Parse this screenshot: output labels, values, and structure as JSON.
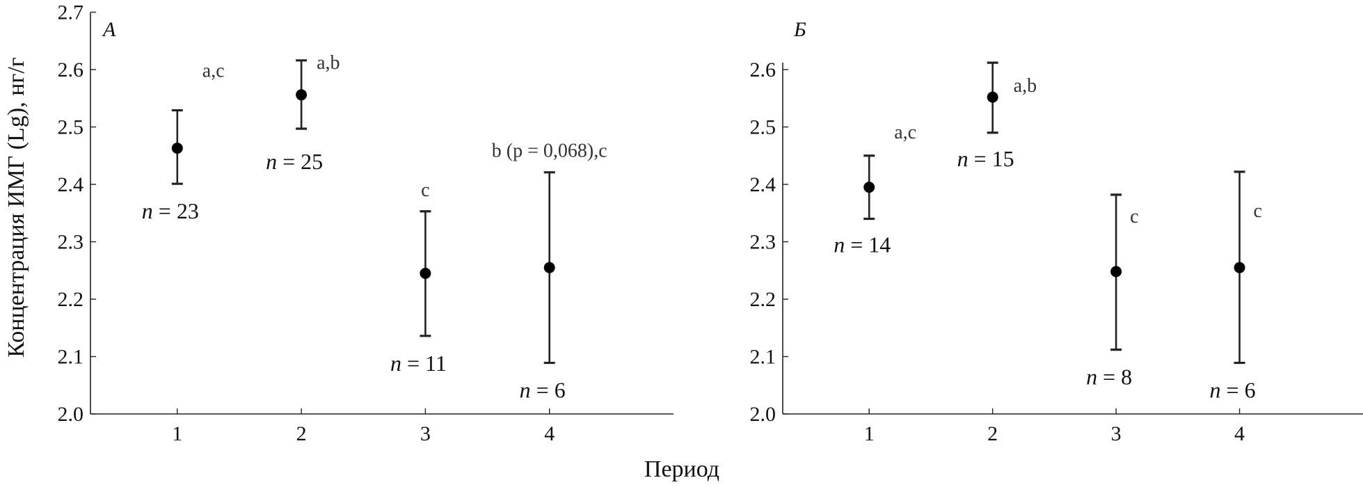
{
  "ylabel": "Концентрация ИМГ (Lg), нг/г",
  "xlabel": "Период",
  "chart_data": [
    {
      "type": "scatter",
      "panel": "А",
      "xticks": [
        "1",
        "2",
        "3",
        "4"
      ],
      "yticks": [
        "2.0",
        "2.1",
        "2.2",
        "2.3",
        "2.4",
        "2.5",
        "2.6",
        "2.7"
      ],
      "xlim": [
        0.3,
        5.0
      ],
      "ylim": [
        2.0,
        2.7
      ],
      "points": [
        {
          "x": 1,
          "y": 2.463,
          "lower": 2.401,
          "upper": 2.529,
          "annotation": "a,c",
          "n_label": "n",
          "n_value": "= 23"
        },
        {
          "x": 2,
          "y": 2.556,
          "lower": 2.497,
          "upper": 2.616,
          "annotation": "a,b",
          "n_label": "n",
          "n_value": "= 25"
        },
        {
          "x": 3,
          "y": 2.245,
          "lower": 2.136,
          "upper": 2.353,
          "annotation": "c",
          "n_label": "n",
          "n_value": "= 11"
        },
        {
          "x": 4,
          "y": 2.255,
          "lower": 2.089,
          "upper": 2.421,
          "annotation": "b (p = 0,068),c",
          "n_label": "n",
          "n_value": "= 6"
        }
      ]
    },
    {
      "type": "scatter",
      "panel": "Б",
      "xticks": [
        "1",
        "2",
        "3",
        "4"
      ],
      "yticks": [
        "2.0",
        "2.1",
        "2.2",
        "2.3",
        "2.4",
        "2.5",
        "2.6"
      ],
      "xlim": [
        0.3,
        5.0
      ],
      "ylim": [
        2.0,
        2.64
      ],
      "points": [
        {
          "x": 1,
          "y": 2.395,
          "lower": 2.34,
          "upper": 2.45,
          "annotation": "a,c",
          "n_label": "n",
          "n_value": "= 14"
        },
        {
          "x": 2,
          "y": 2.552,
          "lower": 2.49,
          "upper": 2.612,
          "annotation": "a,b",
          "n_label": "n",
          "n_value": "= 15"
        },
        {
          "x": 3,
          "y": 2.248,
          "lower": 2.112,
          "upper": 2.382,
          "annotation": "c",
          "n_label": "n",
          "n_value": "= 8"
        },
        {
          "x": 4,
          "y": 2.255,
          "lower": 2.089,
          "upper": 2.422,
          "annotation": "c",
          "n_label": "n",
          "n_value": "= 6"
        }
      ]
    }
  ]
}
